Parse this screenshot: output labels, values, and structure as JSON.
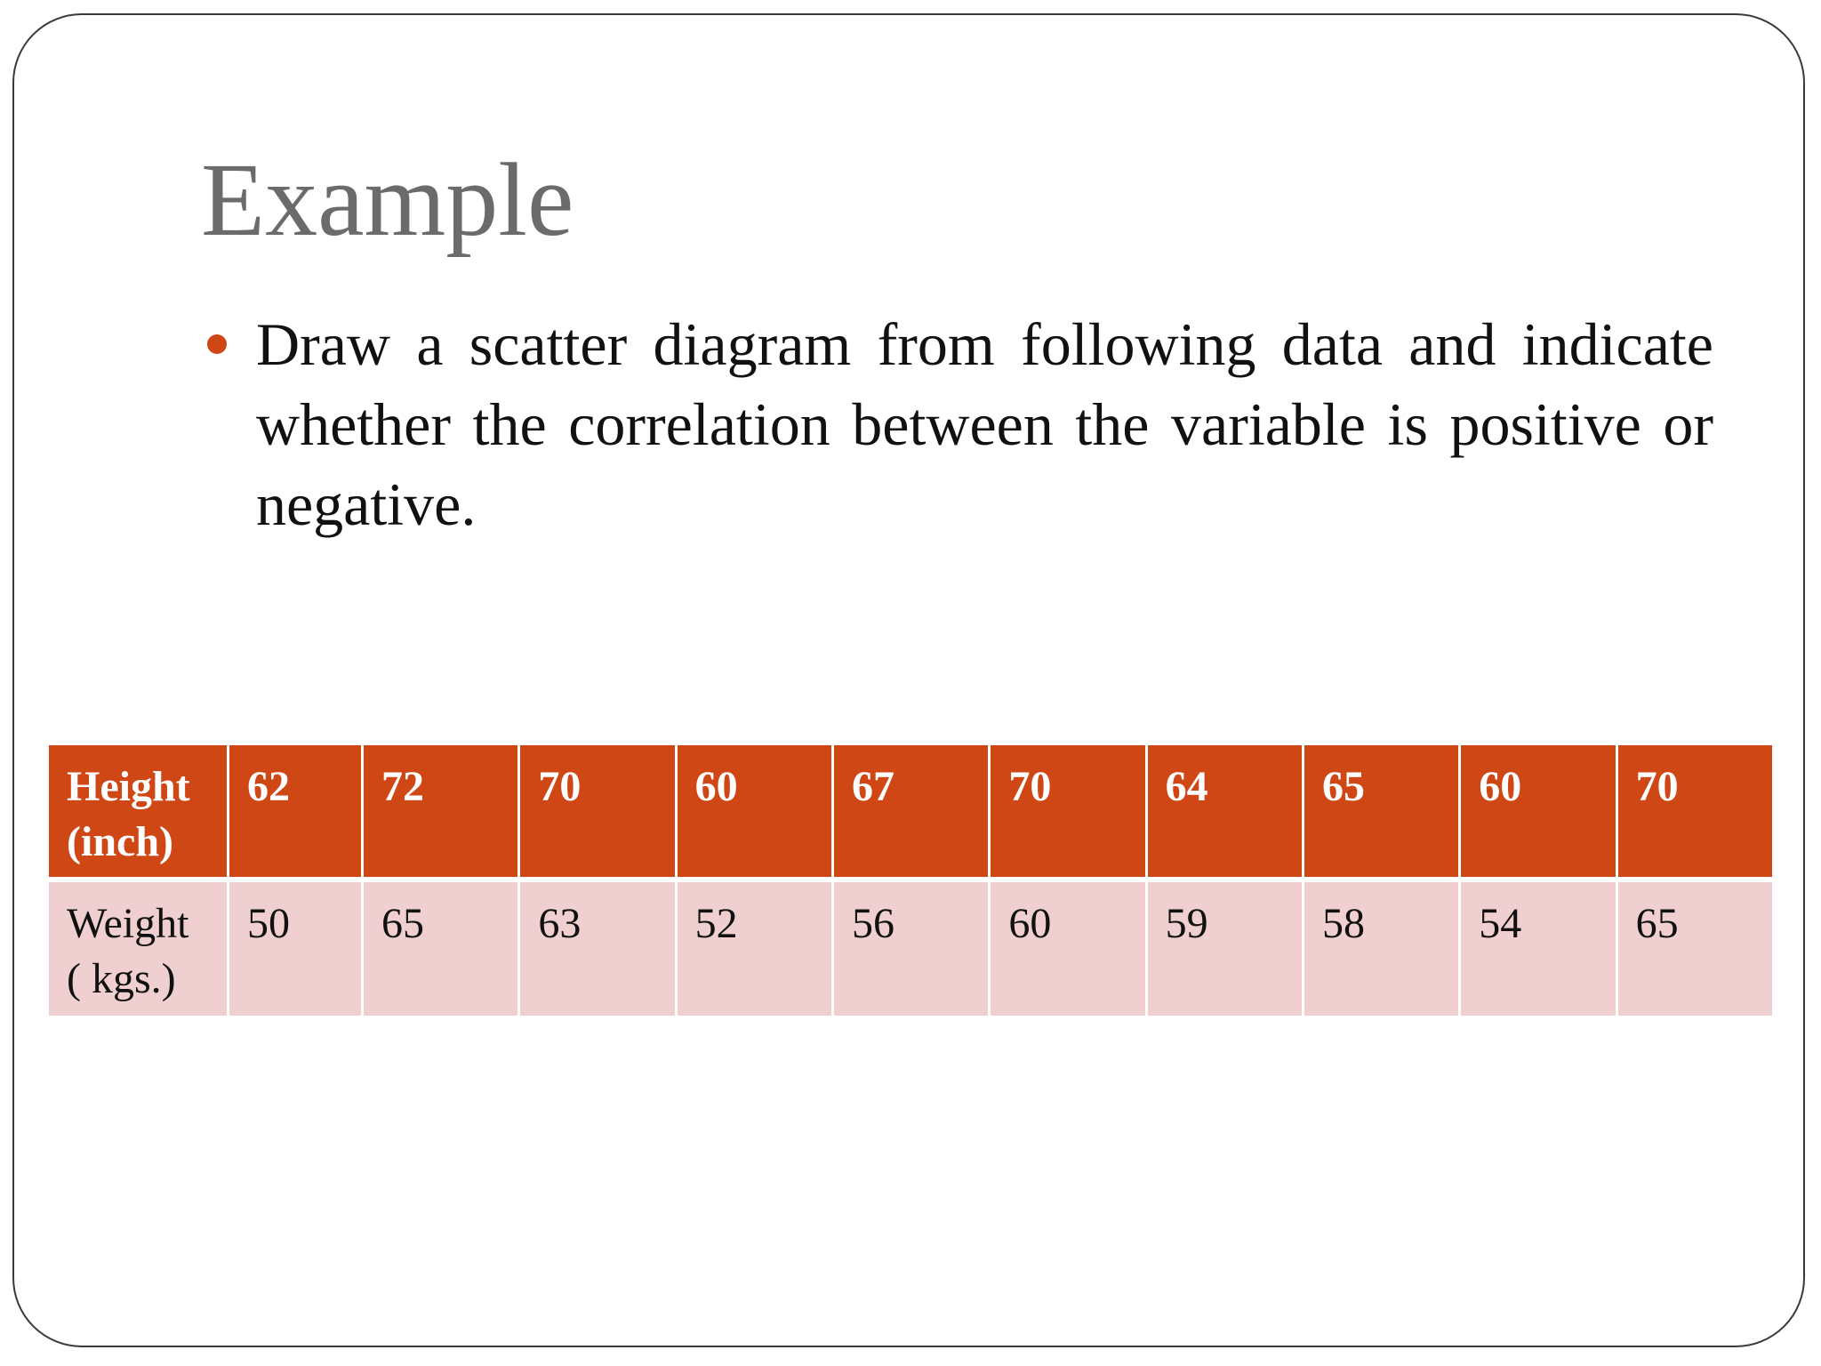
{
  "slide": {
    "title": "Example",
    "bullet": "Draw a scatter diagram from following data and indicate whether the correlation between the variable is positive or negative.",
    "bullet_color": "#d04716"
  },
  "table": {
    "header_color": "#d04716",
    "row_color": "#efcfcf",
    "rows": [
      {
        "label_line1": "Height",
        "label_line2": "(inch)",
        "values": [
          "62",
          "72",
          "70",
          "60",
          "67",
          "70",
          "64",
          "65",
          "60",
          "70"
        ]
      },
      {
        "label_line1": "Weight",
        "label_line2": "( kgs.)",
        "values": [
          "50",
          "65",
          "63",
          "52",
          "56",
          "60",
          "59",
          "58",
          "54",
          "65"
        ]
      }
    ]
  }
}
